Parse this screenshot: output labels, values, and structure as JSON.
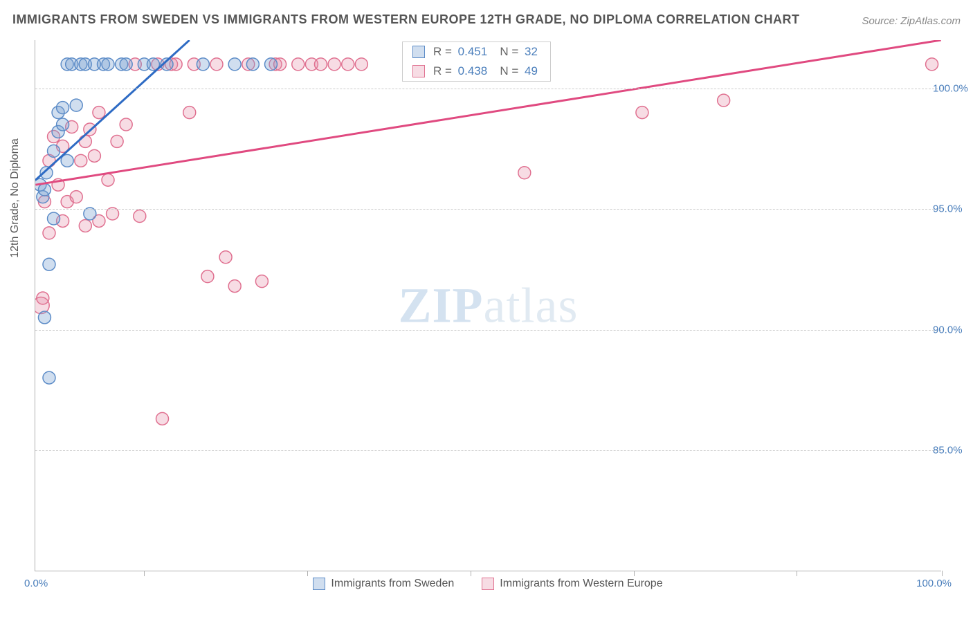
{
  "title": "IMMIGRANTS FROM SWEDEN VS IMMIGRANTS FROM WESTERN EUROPE 12TH GRADE, NO DIPLOMA CORRELATION CHART",
  "source": "Source: ZipAtlas.com",
  "ylabel": "12th Grade, No Diploma",
  "watermark": {
    "bold": "ZIP",
    "light": "atlas"
  },
  "chart": {
    "type": "scatter",
    "xlim": [
      0,
      100
    ],
    "ylim": [
      80,
      102
    ],
    "xtick_positions": [
      12,
      30,
      48,
      66,
      84,
      100
    ],
    "xlabels": {
      "min": "0.0%",
      "max": "100.0%"
    },
    "yticks": [
      {
        "v": 85,
        "label": "85.0%"
      },
      {
        "v": 90,
        "label": "90.0%"
      },
      {
        "v": 95,
        "label": "95.0%"
      },
      {
        "v": 100,
        "label": "100.0%"
      }
    ],
    "grid_color": "#cccccc",
    "background_color": "#ffffff",
    "series": [
      {
        "key": "series_a",
        "label": "Immigrants from Sweden",
        "marker_fill": "rgba(120,160,210,0.35)",
        "marker_stroke": "#5b8bc7",
        "line_color": "#2e6bc4",
        "R": "0.451",
        "N": "32",
        "marker_radius": 9,
        "trend": {
          "x1": 0,
          "y1": 96.2,
          "x2": 17,
          "y2": 102
        },
        "points": [
          {
            "x": 0.5,
            "y": 96.0
          },
          {
            "x": 0.8,
            "y": 95.5
          },
          {
            "x": 1.0,
            "y": 95.8
          },
          {
            "x": 1.2,
            "y": 96.5
          },
          {
            "x": 1.0,
            "y": 90.5
          },
          {
            "x": 1.5,
            "y": 92.7
          },
          {
            "x": 2.0,
            "y": 94.6
          },
          {
            "x": 2.0,
            "y": 97.4
          },
          {
            "x": 2.5,
            "y": 98.2
          },
          {
            "x": 2.5,
            "y": 99.0
          },
          {
            "x": 3.0,
            "y": 99.2
          },
          {
            "x": 3.0,
            "y": 98.5
          },
          {
            "x": 3.5,
            "y": 97.0
          },
          {
            "x": 3.5,
            "y": 101.0
          },
          {
            "x": 4.0,
            "y": 101.0
          },
          {
            "x": 4.5,
            "y": 99.3
          },
          {
            "x": 5.0,
            "y": 101.0
          },
          {
            "x": 5.5,
            "y": 101.0
          },
          {
            "x": 6.0,
            "y": 94.8
          },
          {
            "x": 6.5,
            "y": 101.0
          },
          {
            "x": 7.5,
            "y": 101.0
          },
          {
            "x": 8.0,
            "y": 101.0
          },
          {
            "x": 9.5,
            "y": 101.0
          },
          {
            "x": 10.0,
            "y": 101.0
          },
          {
            "x": 12.0,
            "y": 101.0
          },
          {
            "x": 13.0,
            "y": 101.0
          },
          {
            "x": 14.5,
            "y": 101.0
          },
          {
            "x": 18.5,
            "y": 101.0
          },
          {
            "x": 22.0,
            "y": 101.0
          },
          {
            "x": 24.0,
            "y": 101.0
          },
          {
            "x": 26.0,
            "y": 101.0
          },
          {
            "x": 1.5,
            "y": 88.0
          }
        ]
      },
      {
        "key": "series_b",
        "label": "Immigrants from Western Europe",
        "marker_fill": "rgba(230,140,165,0.30)",
        "marker_stroke": "#e07090",
        "line_color": "#e04a80",
        "R": "0.438",
        "N": "49",
        "marker_radius": 9,
        "trend": {
          "x1": 0,
          "y1": 96.0,
          "x2": 100,
          "y2": 102
        },
        "points": [
          {
            "x": 0.6,
            "y": 91.0,
            "r": 12
          },
          {
            "x": 0.8,
            "y": 91.3
          },
          {
            "x": 1.0,
            "y": 95.3
          },
          {
            "x": 1.5,
            "y": 94.0
          },
          {
            "x": 2.5,
            "y": 96.0
          },
          {
            "x": 3.0,
            "y": 94.5
          },
          {
            "x": 3.5,
            "y": 95.3
          },
          {
            "x": 4.5,
            "y": 95.5
          },
          {
            "x": 5.0,
            "y": 97.0
          },
          {
            "x": 5.5,
            "y": 97.8
          },
          {
            "x": 6.0,
            "y": 98.3
          },
          {
            "x": 7.0,
            "y": 94.5
          },
          {
            "x": 8.0,
            "y": 96.2
          },
          {
            "x": 9.0,
            "y": 97.8
          },
          {
            "x": 10.0,
            "y": 98.5
          },
          {
            "x": 11.0,
            "y": 101.0
          },
          {
            "x": 11.5,
            "y": 94.7
          },
          {
            "x": 13.5,
            "y": 101.0
          },
          {
            "x": 14.0,
            "y": 86.3
          },
          {
            "x": 15.0,
            "y": 101.0
          },
          {
            "x": 15.5,
            "y": 101.0
          },
          {
            "x": 17.0,
            "y": 99.0
          },
          {
            "x": 17.5,
            "y": 101.0
          },
          {
            "x": 19.0,
            "y": 92.2
          },
          {
            "x": 20.0,
            "y": 101.0
          },
          {
            "x": 21.0,
            "y": 93.0
          },
          {
            "x": 22.0,
            "y": 91.8
          },
          {
            "x": 23.5,
            "y": 101.0
          },
          {
            "x": 25.0,
            "y": 92.0
          },
          {
            "x": 26.5,
            "y": 101.0
          },
          {
            "x": 27.0,
            "y": 101.0
          },
          {
            "x": 29.0,
            "y": 101.0
          },
          {
            "x": 30.5,
            "y": 101.0
          },
          {
            "x": 31.5,
            "y": 101.0
          },
          {
            "x": 33.0,
            "y": 101.0
          },
          {
            "x": 34.5,
            "y": 101.0
          },
          {
            "x": 36.0,
            "y": 101.0
          },
          {
            "x": 54.0,
            "y": 96.5
          },
          {
            "x": 67.0,
            "y": 99.0
          },
          {
            "x": 76.0,
            "y": 99.5
          },
          {
            "x": 99.0,
            "y": 101.0
          },
          {
            "x": 4.0,
            "y": 98.4
          },
          {
            "x": 7.0,
            "y": 99.0
          },
          {
            "x": 2.0,
            "y": 98.0
          },
          {
            "x": 5.5,
            "y": 94.3
          },
          {
            "x": 6.5,
            "y": 97.2
          },
          {
            "x": 8.5,
            "y": 94.8
          },
          {
            "x": 3.0,
            "y": 97.6
          },
          {
            "x": 1.5,
            "y": 97.0
          }
        ]
      }
    ],
    "legend_stat_labels": {
      "R": "R =",
      "N": "N ="
    }
  }
}
